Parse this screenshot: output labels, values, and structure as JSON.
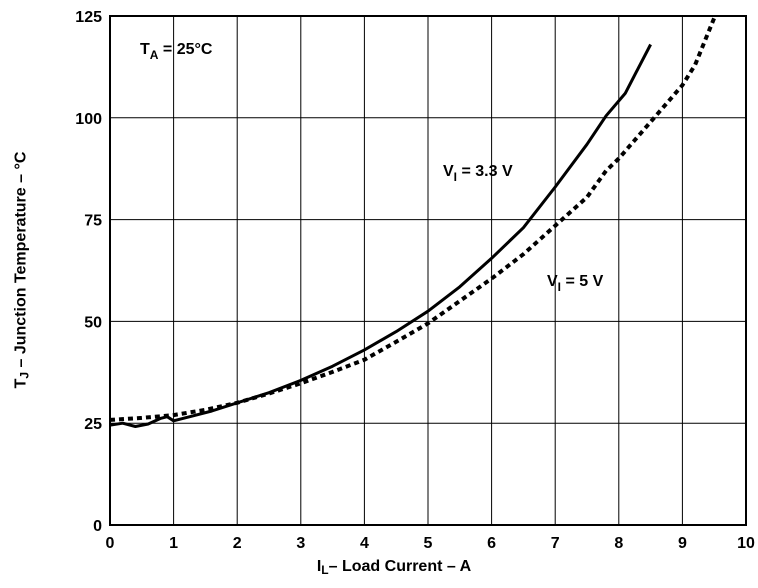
{
  "chart_data": {
    "type": "line",
    "title": "",
    "xlabel": {
      "main": "I",
      "sub": "L",
      "rest": "– Load Current – A"
    },
    "ylabel": {
      "main": "T",
      "sub": "J",
      "rest": " – Junction Temperature – °C"
    },
    "xlim": [
      0,
      10
    ],
    "ylim": [
      0,
      125
    ],
    "x_ticks": [
      "0",
      "1",
      "2",
      "3",
      "4",
      "5",
      "6",
      "7",
      "8",
      "9",
      "10"
    ],
    "y_ticks": [
      "0",
      "25",
      "50",
      "75",
      "100",
      "125"
    ],
    "grid": true,
    "legend": "none",
    "annotations": {
      "ta": {
        "main": "T",
        "sub": "A",
        "rest": " = 25°C"
      },
      "v33": {
        "main": "V",
        "sub": "I",
        "rest": " = 3.3 V"
      },
      "v5": {
        "main": "V",
        "sub": "I",
        "rest": " = 5 V"
      }
    },
    "series": [
      {
        "label_key": "v33",
        "style": "solid",
        "x": [
          0,
          0.2,
          0.4,
          0.6,
          0.8,
          0.9,
          1.0,
          1.3,
          1.6,
          2.0,
          2.5,
          3.0,
          3.5,
          4.0,
          4.5,
          5.0,
          5.5,
          6.0,
          6.5,
          7.0,
          7.5,
          7.8,
          8.1,
          8.3,
          8.5
        ],
        "y": [
          24.5,
          25.0,
          24.2,
          24.8,
          26.2,
          26.6,
          25.6,
          26.8,
          28.0,
          30.0,
          32.5,
          35.5,
          39.0,
          43.0,
          47.5,
          52.5,
          58.5,
          65.5,
          73.0,
          83.0,
          93.5,
          100.5,
          106.0,
          112.0,
          118.0
        ]
      },
      {
        "label_key": "v5",
        "style": "dotted",
        "x": [
          0,
          0.5,
          1.0,
          1.5,
          2.0,
          2.5,
          3.0,
          3.5,
          4.0,
          4.5,
          5.0,
          5.5,
          6.0,
          6.5,
          7.0,
          7.5,
          7.8,
          8.0,
          8.5,
          9.0,
          9.2,
          9.5
        ],
        "y": [
          25.8,
          26.3,
          27.0,
          28.3,
          30.0,
          32.3,
          34.8,
          37.6,
          40.6,
          45.0,
          49.5,
          55.0,
          60.5,
          66.5,
          73.5,
          80.5,
          87.0,
          90.0,
          99.0,
          108.0,
          113.0,
          124.5
        ]
      }
    ]
  }
}
